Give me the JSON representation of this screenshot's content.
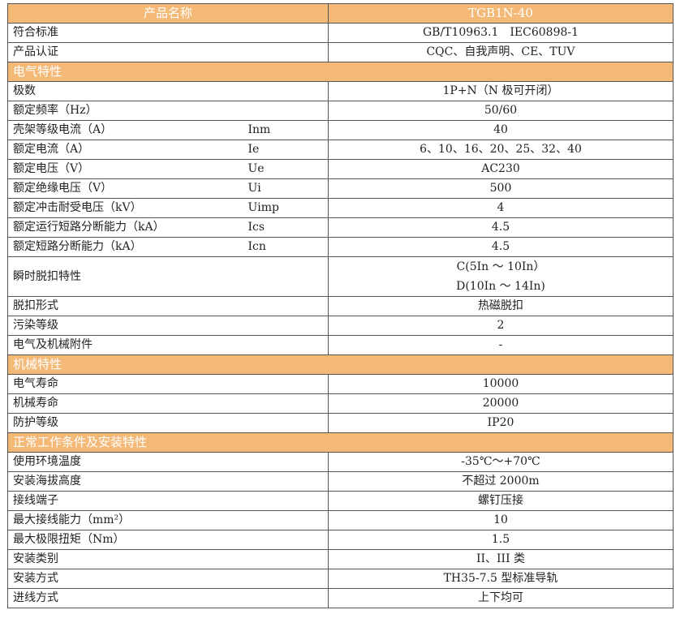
{
  "header": {
    "label": "产品名称",
    "value": "TGB1N-40"
  },
  "rows": [
    {
      "label": "符合标准",
      "value": "GB/T10963.1　IEC60898-1"
    },
    {
      "label": "产品认证",
      "value": "CQC、自我声明、CE、TUV"
    },
    {
      "section": "电气特性"
    },
    {
      "label": "极数",
      "value": "1P+N（N 极可开闭）"
    },
    {
      "label": "额定频率（Hz）",
      "value": "50/60"
    },
    {
      "label": "壳架等级电流（A）",
      "symbol": "Inm",
      "value": "40"
    },
    {
      "label": "额定电流（A）",
      "symbol": "Ie",
      "value": "6、10、16、20、25、32、40"
    },
    {
      "label": "额定电压（V）",
      "symbol": "Ue",
      "value": "AC230"
    },
    {
      "label": "额定绝缘电压（V）",
      "symbol": "Ui",
      "value": "500"
    },
    {
      "label": "额定冲击耐受电压（kV）",
      "symbol": "Uimp",
      "value": "4"
    },
    {
      "label": "额定运行短路分断能力（kA）",
      "symbol": "Ics",
      "value": "4.5"
    },
    {
      "label": "额定短路分断能力（kA）",
      "symbol": "Icn",
      "value": "4.5"
    },
    {
      "label": "瞬时脱扣特性",
      "value": "C(5In ～ 10In）",
      "value2": "D(10In ～ 14In)"
    },
    {
      "label": "脱扣形式",
      "value": "热磁脱扣"
    },
    {
      "label": "污染等级",
      "value": "2"
    },
    {
      "label": "电气及机械附件",
      "value": "-"
    },
    {
      "section": "机械特性"
    },
    {
      "label": "电气寿命",
      "value": "10000"
    },
    {
      "label": "机械寿命",
      "value": "20000"
    },
    {
      "label": "防护等级",
      "value": "IP20"
    },
    {
      "section": "正常工作条件及安装特性"
    },
    {
      "label": "使用环境温度",
      "value": "-35℃～+70℃"
    },
    {
      "label": "安装海拔高度",
      "value": "不超过 2000m"
    },
    {
      "label": "接线端子",
      "value": "螺钉压接"
    },
    {
      "label": "最大接线能力（mm²）",
      "value": "10"
    },
    {
      "label": "最大极限扭矩（Nm）",
      "value": "1.5"
    },
    {
      "label": "安装类别",
      "value": "II、III 类"
    },
    {
      "label": "安装方式",
      "value": "TH35-7.5 型标准导轨"
    },
    {
      "label": "进线方式",
      "value": "上下均可"
    }
  ],
  "colors": {
    "section_fill": "#F5B977",
    "section_text": "#FFFFFF",
    "border": "#555555"
  }
}
